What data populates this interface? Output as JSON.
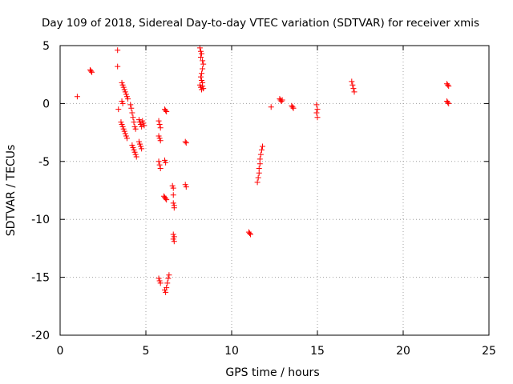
{
  "chart_data": {
    "type": "scatter",
    "title": "Day 109 of 2018, Sidereal Day-to-day VTEC variation (SDTVAR) for receiver xmis",
    "xlabel": "GPS time / hours",
    "ylabel": "SDTVAR / TECUs",
    "xlim": [
      0,
      25
    ],
    "ylim": [
      -20,
      5
    ],
    "xticks": [
      0,
      5,
      10,
      15,
      20,
      25
    ],
    "yticks": [
      5,
      0,
      -5,
      -10,
      -15,
      -20
    ],
    "grid": true,
    "marker": "+",
    "color": "#ff0000",
    "series": [
      {
        "name": "SDTVAR",
        "points": [
          [
            1.0,
            0.6
          ],
          [
            1.75,
            2.9
          ],
          [
            1.8,
            2.8
          ],
          [
            1.85,
            2.7
          ],
          [
            3.35,
            4.6
          ],
          [
            3.35,
            3.2
          ],
          [
            3.4,
            -0.5
          ],
          [
            3.6,
            1.8
          ],
          [
            3.65,
            1.6
          ],
          [
            3.7,
            1.4
          ],
          [
            3.75,
            1.2
          ],
          [
            3.8,
            1.0
          ],
          [
            3.85,
            0.8
          ],
          [
            3.9,
            0.6
          ],
          [
            3.95,
            0.4
          ],
          [
            3.6,
            0.2
          ],
          [
            3.65,
            0.0
          ],
          [
            3.55,
            -1.6
          ],
          [
            3.6,
            -1.8
          ],
          [
            3.65,
            -2.0
          ],
          [
            3.7,
            -2.2
          ],
          [
            3.75,
            -2.4
          ],
          [
            3.8,
            -2.6
          ],
          [
            3.85,
            -2.8
          ],
          [
            3.9,
            -3.0
          ],
          [
            4.1,
            -0.1
          ],
          [
            4.15,
            -0.4
          ],
          [
            4.2,
            -0.8
          ],
          [
            4.25,
            -1.2
          ],
          [
            4.3,
            -1.6
          ],
          [
            4.35,
            -2.0
          ],
          [
            4.4,
            -2.2
          ],
          [
            4.2,
            -3.6
          ],
          [
            4.25,
            -3.8
          ],
          [
            4.3,
            -4.0
          ],
          [
            4.35,
            -4.2
          ],
          [
            4.4,
            -4.4
          ],
          [
            4.45,
            -4.6
          ],
          [
            4.6,
            -1.4
          ],
          [
            4.65,
            -1.6
          ],
          [
            4.7,
            -1.8
          ],
          [
            4.75,
            -2.0
          ],
          [
            4.8,
            -1.5
          ],
          [
            4.85,
            -1.7
          ],
          [
            4.9,
            -1.9
          ],
          [
            4.6,
            -3.3
          ],
          [
            4.65,
            -3.5
          ],
          [
            4.7,
            -3.7
          ],
          [
            4.75,
            -3.9
          ],
          [
            5.75,
            -1.5
          ],
          [
            5.8,
            -1.8
          ],
          [
            5.85,
            -2.1
          ],
          [
            5.75,
            -2.8
          ],
          [
            5.8,
            -3.0
          ],
          [
            5.85,
            -3.2
          ],
          [
            5.75,
            -5.0
          ],
          [
            5.8,
            -5.3
          ],
          [
            5.85,
            -5.6
          ],
          [
            5.75,
            -15.1
          ],
          [
            5.8,
            -15.3
          ],
          [
            5.85,
            -15.5
          ],
          [
            6.1,
            -0.5
          ],
          [
            6.15,
            -0.6
          ],
          [
            6.2,
            -0.7
          ],
          [
            6.1,
            -4.9
          ],
          [
            6.15,
            -5.1
          ],
          [
            6.05,
            -8.0
          ],
          [
            6.1,
            -8.1
          ],
          [
            6.15,
            -8.2
          ],
          [
            6.2,
            -8.3
          ],
          [
            6.1,
            -16.1
          ],
          [
            6.15,
            -16.3
          ],
          [
            6.2,
            -15.9
          ],
          [
            6.25,
            -15.5
          ],
          [
            6.3,
            -15.1
          ],
          [
            6.35,
            -14.8
          ],
          [
            6.55,
            -7.1
          ],
          [
            6.6,
            -7.3
          ],
          [
            6.6,
            -7.9
          ],
          [
            6.6,
            -8.6
          ],
          [
            6.65,
            -9.0
          ],
          [
            6.65,
            -8.8
          ],
          [
            6.6,
            -11.3
          ],
          [
            6.65,
            -11.5
          ],
          [
            6.6,
            -11.7
          ],
          [
            6.65,
            -11.9
          ],
          [
            7.3,
            -3.3
          ],
          [
            7.35,
            -3.4
          ],
          [
            7.3,
            -7.0
          ],
          [
            7.35,
            -7.2
          ],
          [
            8.15,
            4.8
          ],
          [
            8.2,
            4.5
          ],
          [
            8.25,
            4.3
          ],
          [
            8.2,
            4.0
          ],
          [
            8.3,
            3.7
          ],
          [
            8.35,
            3.4
          ],
          [
            8.3,
            3.0
          ],
          [
            8.25,
            2.6
          ],
          [
            8.2,
            2.3
          ],
          [
            8.25,
            2.0
          ],
          [
            8.3,
            1.8
          ],
          [
            8.15,
            1.6
          ],
          [
            8.2,
            1.4
          ],
          [
            8.25,
            1.2
          ],
          [
            8.3,
            1.5
          ],
          [
            8.35,
            1.3
          ],
          [
            11.0,
            -11.1
          ],
          [
            11.05,
            -11.2
          ],
          [
            11.1,
            -11.3
          ],
          [
            11.5,
            -6.8
          ],
          [
            11.55,
            -6.4
          ],
          [
            11.6,
            -6.0
          ],
          [
            11.6,
            -5.6
          ],
          [
            11.65,
            -5.2
          ],
          [
            11.65,
            -4.8
          ],
          [
            11.7,
            -4.4
          ],
          [
            11.75,
            -4.0
          ],
          [
            11.8,
            -3.7
          ],
          [
            12.3,
            -0.3
          ],
          [
            12.8,
            0.4
          ],
          [
            12.85,
            0.3
          ],
          [
            12.9,
            0.2
          ],
          [
            12.95,
            0.3
          ],
          [
            13.5,
            -0.2
          ],
          [
            13.55,
            -0.3
          ],
          [
            13.6,
            -0.4
          ],
          [
            14.95,
            -0.1
          ],
          [
            15.0,
            -0.5
          ],
          [
            14.95,
            -0.8
          ],
          [
            15.0,
            -1.2
          ],
          [
            17.0,
            1.9
          ],
          [
            17.05,
            1.6
          ],
          [
            17.1,
            1.3
          ],
          [
            17.15,
            1.0
          ],
          [
            22.55,
            1.7
          ],
          [
            22.6,
            1.6
          ],
          [
            22.65,
            1.5
          ],
          [
            22.55,
            0.2
          ],
          [
            22.6,
            0.1
          ],
          [
            22.65,
            0.0
          ]
        ]
      }
    ]
  }
}
